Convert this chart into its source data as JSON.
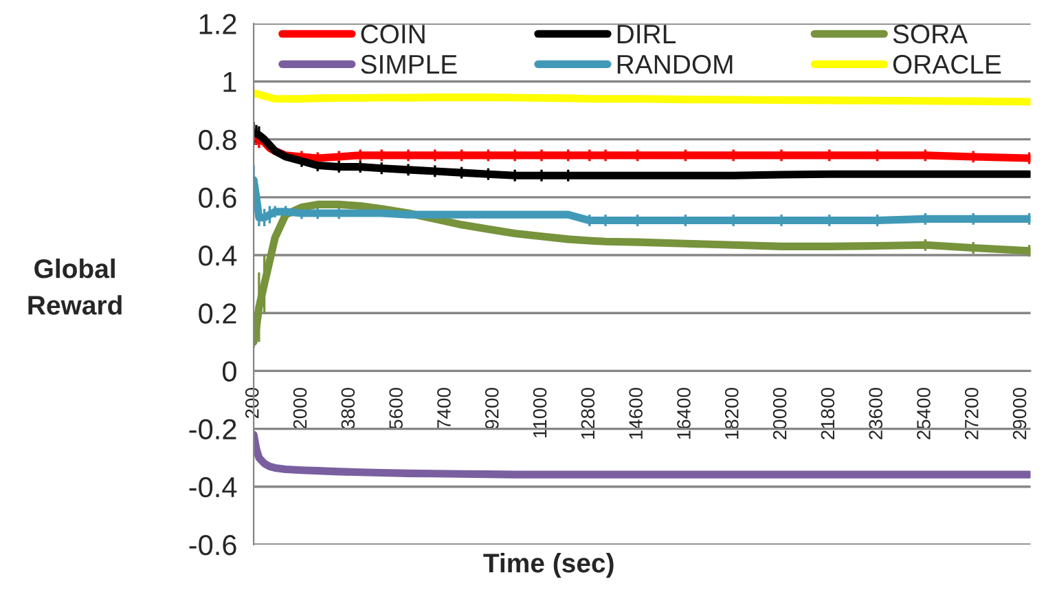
{
  "chart_data": {
    "type": "line",
    "xlabel": "Time (sec)",
    "ylabel": "Global\nReward",
    "x": [
      200,
      300,
      400,
      600,
      800,
      1000,
      1400,
      2000,
      2600,
      3400,
      4200,
      5000,
      6000,
      7000,
      8000,
      9000,
      10000,
      11000,
      12000,
      12800,
      13400,
      14600,
      16400,
      18200,
      20000,
      21800,
      23600,
      25400,
      27200,
      29300
    ],
    "xlim": [
      200,
      29350
    ],
    "xticks": [
      200,
      2000,
      3800,
      5600,
      7400,
      9200,
      11000,
      12800,
      14600,
      16400,
      18200,
      20000,
      21800,
      23600,
      25400,
      27200,
      29000
    ],
    "ylim": [
      -0.6,
      1.2
    ],
    "yticks": [
      -0.6,
      -0.4,
      -0.2,
      0,
      0.2,
      0.4,
      0.6,
      0.8,
      1,
      1.2
    ],
    "grid": "y",
    "legend": "top",
    "line_style": "solid",
    "marker": "none",
    "series": [
      {
        "name": "COIN",
        "color": "#ff0000",
        "values": [
          0.81,
          0.81,
          0.8,
          0.79,
          0.77,
          0.76,
          0.745,
          0.74,
          0.735,
          0.74,
          0.745,
          0.745,
          0.745,
          0.745,
          0.745,
          0.745,
          0.745,
          0.745,
          0.745,
          0.745,
          0.745,
          0.745,
          0.745,
          0.745,
          0.745,
          0.745,
          0.745,
          0.745,
          0.74,
          0.735
        ],
        "errors": [
          0.03,
          0.03,
          0.03,
          null,
          null,
          null,
          null,
          0.02,
          0.02,
          0.02,
          0.02,
          0.02,
          0.02,
          0.02,
          0.02,
          0.02,
          0.02,
          0.02,
          0.02,
          0.02,
          0.02,
          0.02,
          0.02,
          0.02,
          0.02,
          0.02,
          0.02,
          0.02,
          0.02,
          0.02
        ]
      },
      {
        "name": "DIRL",
        "color": "#000000",
        "values": [
          0.82,
          0.82,
          0.815,
          0.8,
          0.78,
          0.76,
          0.74,
          0.725,
          0.71,
          0.705,
          0.705,
          0.7,
          0.695,
          0.69,
          0.685,
          0.68,
          0.675,
          0.675,
          0.675,
          0.675,
          0.675,
          0.675,
          0.675,
          0.675,
          0.678,
          0.68,
          0.68,
          0.68,
          0.68,
          0.68
        ],
        "errors": [
          0.04,
          0.03,
          0.03,
          null,
          null,
          null,
          null,
          0.02,
          0.02,
          0.02,
          0.02,
          0.02,
          0.02,
          0.02,
          0.02,
          0.02,
          0.02,
          0.02,
          0.02,
          0.01,
          0.01,
          0.01,
          0.01,
          0.01,
          0.01,
          0.01,
          0.01,
          0.01,
          0.01,
          0.01
        ]
      },
      {
        "name": "SORA",
        "color": "#77933c",
        "values": [
          0.1,
          0.15,
          0.22,
          0.3,
          0.38,
          0.46,
          0.54,
          0.565,
          0.575,
          0.575,
          0.57,
          0.56,
          0.545,
          0.525,
          0.505,
          0.49,
          0.475,
          0.465,
          0.455,
          0.45,
          0.447,
          0.445,
          0.44,
          0.435,
          0.43,
          0.43,
          0.432,
          0.435,
          0.425,
          0.415
        ],
        "errors": [
          0.02,
          0.05,
          0.12,
          0.1,
          0.03,
          0.02,
          0.01,
          0.01,
          0.01,
          0.01,
          0.01,
          0.01,
          0.01,
          0.01,
          0.01,
          0.01,
          0.01,
          0.01,
          0.01,
          0.01,
          0.01,
          0.01,
          0.01,
          0.01,
          0.01,
          0.01,
          0.01,
          0.02,
          0.02,
          0.02
        ]
      },
      {
        "name": "SIMPLE",
        "color": "#7a5fa0",
        "values": [
          -0.22,
          -0.27,
          -0.3,
          -0.32,
          -0.33,
          -0.335,
          -0.34,
          -0.343,
          -0.345,
          -0.348,
          -0.35,
          -0.352,
          -0.354,
          -0.355,
          -0.356,
          -0.357,
          -0.358,
          -0.358,
          -0.358,
          -0.358,
          -0.358,
          -0.358,
          -0.358,
          -0.358,
          -0.358,
          -0.358,
          -0.358,
          -0.358,
          -0.358,
          -0.358
        ]
      },
      {
        "name": "RANDOM",
        "color": "#4199b8",
        "values": [
          0.66,
          0.6,
          0.53,
          0.53,
          0.54,
          0.55,
          0.55,
          0.545,
          0.545,
          0.545,
          0.545,
          0.545,
          0.54,
          0.54,
          0.54,
          0.54,
          0.54,
          0.54,
          0.54,
          0.52,
          0.52,
          0.52,
          0.52,
          0.52,
          0.52,
          0.52,
          0.52,
          0.525,
          0.525,
          0.525
        ],
        "errors": [
          0.05,
          0.05,
          0.03,
          0.03,
          0.03,
          0.02,
          0.02,
          0.02,
          0.02,
          0.02,
          0.01,
          0.01,
          0.01,
          0.01,
          0.01,
          0.01,
          0.01,
          0.01,
          0.01,
          0.02,
          0.02,
          0.02,
          0.02,
          0.02,
          0.02,
          0.02,
          0.02,
          0.02,
          0.02,
          0.02
        ]
      },
      {
        "name": "ORACLE",
        "color": "#ffff00",
        "values": [
          0.96,
          0.958,
          0.955,
          0.95,
          0.945,
          0.94,
          0.94,
          0.94,
          0.942,
          0.943,
          0.943,
          0.944,
          0.944,
          0.945,
          0.945,
          0.945,
          0.944,
          0.943,
          0.942,
          0.94,
          0.94,
          0.94,
          0.938,
          0.937,
          0.936,
          0.935,
          0.934,
          0.933,
          0.932,
          0.93
        ]
      }
    ]
  }
}
